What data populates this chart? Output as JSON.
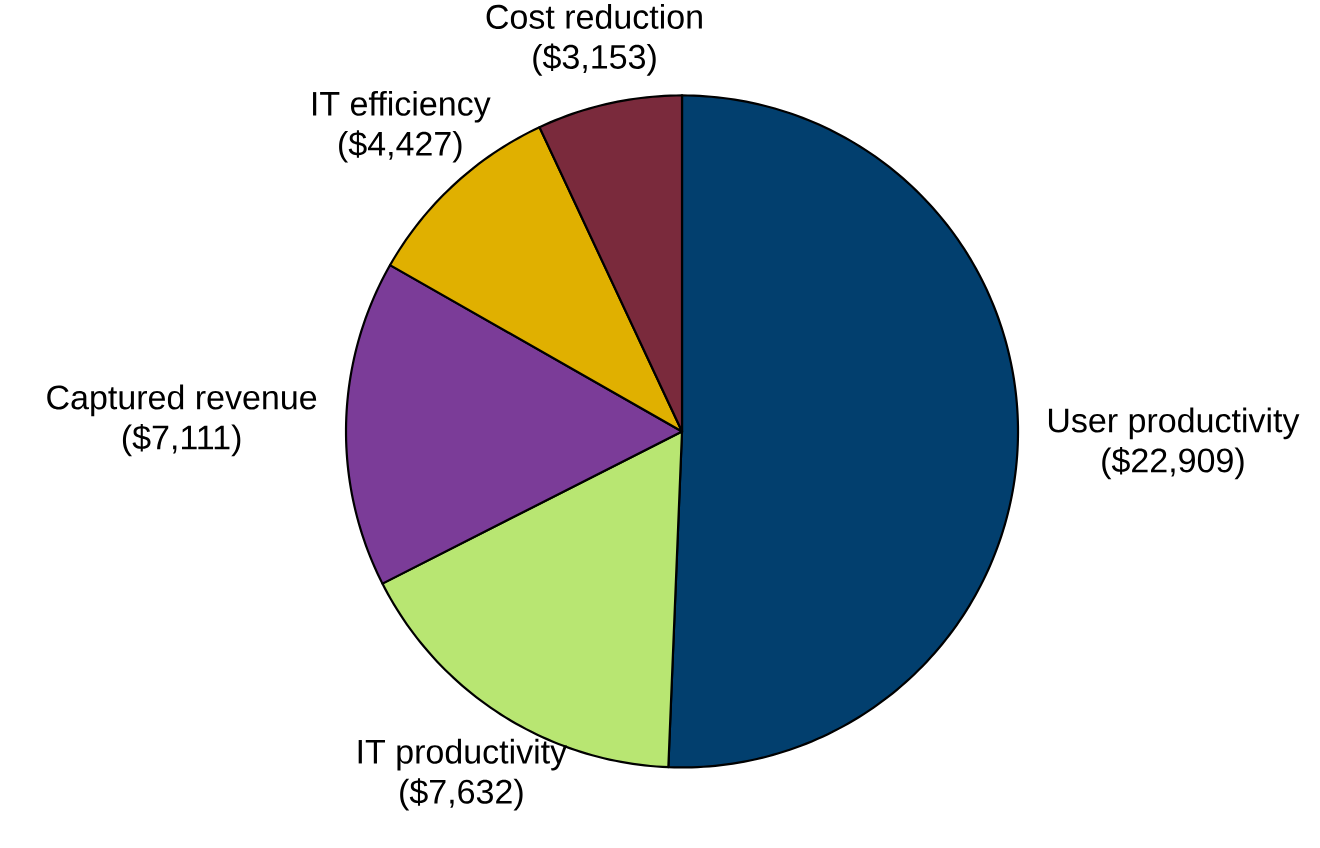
{
  "chart_data": {
    "type": "pie",
    "categories": [
      "User productivity",
      "IT productivity",
      "Captured revenue",
      "IT efficiency",
      "Cost reduction"
    ],
    "values": [
      22909,
      7632,
      7111,
      4427,
      3153
    ],
    "value_labels": [
      "($22,909)",
      "($7,632)",
      "($7,111)",
      "($4,427)",
      "($3,153)"
    ],
    "colors": [
      "#023f6e",
      "#b8e672",
      "#7b3c98",
      "#e0b000",
      "#7a2a3c"
    ]
  }
}
